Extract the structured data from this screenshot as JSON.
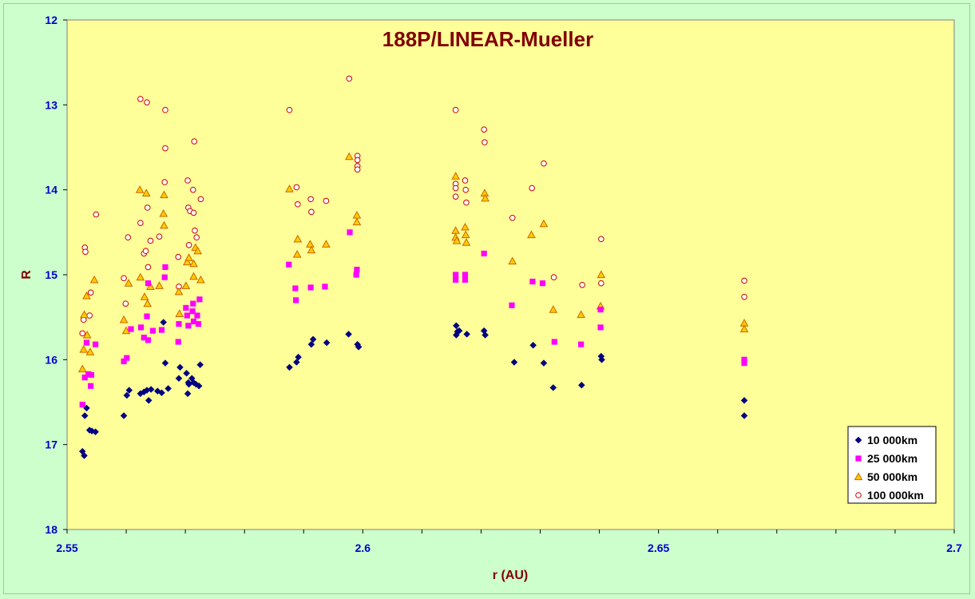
{
  "chart_data": {
    "type": "scatter",
    "title": "188P/LINEAR-Mueller",
    "xlabel": "r (AU)",
    "ylabel": "R",
    "xlim": [
      2.55,
      2.7
    ],
    "ylim": [
      12,
      18
    ],
    "y_inverted": true,
    "x_ticks": [
      "2.55",
      "2.6",
      "2.65",
      "2.7"
    ],
    "x_tick_values": [
      2.55,
      2.6,
      2.65,
      2.7
    ],
    "y_ticks": [
      "12",
      "13",
      "14",
      "15",
      "16",
      "17",
      "18"
    ],
    "y_tick_values": [
      12,
      13,
      14,
      15,
      16,
      17,
      18
    ],
    "x_minor_step": 0.01,
    "grid": false,
    "legend_position": "bottom-right",
    "background": "#ffff99",
    "series": [
      {
        "name": "10 000km",
        "marker": "diamond",
        "color": "#000080",
        "points": [
          [
            2.5526,
            17.08
          ],
          [
            2.5529,
            17.13
          ],
          [
            2.553,
            16.66
          ],
          [
            2.5533,
            16.57
          ],
          [
            2.5538,
            16.83
          ],
          [
            2.5542,
            16.84
          ],
          [
            2.5548,
            16.85
          ],
          [
            2.5596,
            16.66
          ],
          [
            2.5601,
            16.42
          ],
          [
            2.5605,
            16.36
          ],
          [
            2.5624,
            16.4
          ],
          [
            2.563,
            16.38
          ],
          [
            2.5635,
            16.36
          ],
          [
            2.5638,
            16.48
          ],
          [
            2.5642,
            16.35
          ],
          [
            2.5653,
            16.37
          ],
          [
            2.566,
            16.39
          ],
          [
            2.5663,
            15.56
          ],
          [
            2.5666,
            16.04
          ],
          [
            2.5671,
            16.34
          ],
          [
            2.5689,
            16.22
          ],
          [
            2.5691,
            16.09
          ],
          [
            2.5702,
            16.16
          ],
          [
            2.5705,
            16.27
          ],
          [
            2.5706,
            16.29
          ],
          [
            2.5704,
            16.4
          ],
          [
            2.5711,
            16.22
          ],
          [
            2.5714,
            16.27
          ],
          [
            2.5718,
            16.29
          ],
          [
            2.5723,
            16.31
          ],
          [
            2.5725,
            16.06
          ],
          [
            2.5876,
            16.09
          ],
          [
            2.5888,
            16.03
          ],
          [
            2.5891,
            15.97
          ],
          [
            2.5913,
            15.82
          ],
          [
            2.5916,
            15.76
          ],
          [
            2.5939,
            15.8
          ],
          [
            2.5976,
            15.7
          ],
          [
            2.5991,
            15.82
          ],
          [
            2.5993,
            15.85
          ],
          [
            2.6158,
            15.71
          ],
          [
            2.616,
            15.67
          ],
          [
            2.6158,
            15.6
          ],
          [
            2.6163,
            15.66
          ],
          [
            2.6176,
            15.7
          ],
          [
            2.6205,
            15.66
          ],
          [
            2.6207,
            15.71
          ],
          [
            2.6256,
            16.03
          ],
          [
            2.6288,
            15.83
          ],
          [
            2.6306,
            16.04
          ],
          [
            2.6322,
            16.33
          ],
          [
            2.637,
            16.3
          ],
          [
            2.6403,
            15.96
          ],
          [
            2.6404,
            16.0
          ],
          [
            2.6645,
            16.48
          ],
          [
            2.6645,
            16.66
          ]
        ]
      },
      {
        "name": "25 000km",
        "marker": "square",
        "color": "#ff00ff",
        "points": [
          [
            2.5526,
            16.53
          ],
          [
            2.553,
            16.21
          ],
          [
            2.5533,
            15.8
          ],
          [
            2.5536,
            16.17
          ],
          [
            2.554,
            16.31
          ],
          [
            2.5541,
            16.18
          ],
          [
            2.5548,
            15.82
          ],
          [
            2.5596,
            16.02
          ],
          [
            2.5601,
            15.98
          ],
          [
            2.5608,
            15.64
          ],
          [
            2.5625,
            15.62
          ],
          [
            2.563,
            15.74
          ],
          [
            2.5637,
            15.77
          ],
          [
            2.5635,
            15.49
          ],
          [
            2.5637,
            15.1
          ],
          [
            2.5645,
            15.66
          ],
          [
            2.566,
            15.65
          ],
          [
            2.5665,
            15.03
          ],
          [
            2.5666,
            14.91
          ],
          [
            2.5688,
            15.79
          ],
          [
            2.5689,
            15.58
          ],
          [
            2.5701,
            15.39
          ],
          [
            2.5703,
            15.48
          ],
          [
            2.5705,
            15.6
          ],
          [
            2.5712,
            15.43
          ],
          [
            2.5714,
            15.55
          ],
          [
            2.5713,
            15.34
          ],
          [
            2.572,
            15.48
          ],
          [
            2.5722,
            15.58
          ],
          [
            2.5724,
            15.29
          ],
          [
            2.5875,
            14.88
          ],
          [
            2.5886,
            15.16
          ],
          [
            2.5887,
            15.3
          ],
          [
            2.5912,
            15.15
          ],
          [
            2.5936,
            15.14
          ],
          [
            2.5978,
            14.5
          ],
          [
            2.5989,
            15.0
          ],
          [
            2.599,
            14.94
          ],
          [
            2.6157,
            15.0
          ],
          [
            2.6157,
            15.06
          ],
          [
            2.6173,
            15.0
          ],
          [
            2.6173,
            15.06
          ],
          [
            2.6205,
            14.75
          ],
          [
            2.6252,
            15.36
          ],
          [
            2.6287,
            15.08
          ],
          [
            2.6304,
            15.1
          ],
          [
            2.6324,
            15.79
          ],
          [
            2.6369,
            15.82
          ],
          [
            2.6402,
            15.41
          ],
          [
            2.6402,
            15.62
          ],
          [
            2.6645,
            16.0
          ],
          [
            2.6645,
            16.04
          ]
        ]
      },
      {
        "name": "50 000km",
        "marker": "triangle",
        "color": "#cc6600",
        "fill": "#ffcc00",
        "points": [
          [
            2.5526,
            16.11
          ],
          [
            2.5528,
            15.88
          ],
          [
            2.5529,
            15.47
          ],
          [
            2.5533,
            15.25
          ],
          [
            2.5534,
            15.71
          ],
          [
            2.5539,
            15.91
          ],
          [
            2.5546,
            15.06
          ],
          [
            2.5596,
            15.53
          ],
          [
            2.56,
            15.66
          ],
          [
            2.5604,
            15.1
          ],
          [
            2.5624,
            15.03
          ],
          [
            2.5623,
            14.0
          ],
          [
            2.5634,
            14.04
          ],
          [
            2.5631,
            15.26
          ],
          [
            2.5636,
            15.34
          ],
          [
            2.5641,
            15.14
          ],
          [
            2.5656,
            15.13
          ],
          [
            2.5663,
            14.28
          ],
          [
            2.5664,
            14.42
          ],
          [
            2.5664,
            14.06
          ],
          [
            2.5689,
            15.2
          ],
          [
            2.569,
            15.46
          ],
          [
            2.5701,
            15.13
          ],
          [
            2.5703,
            14.85
          ],
          [
            2.5706,
            14.8
          ],
          [
            2.5714,
            14.87
          ],
          [
            2.5717,
            14.68
          ],
          [
            2.5714,
            15.02
          ],
          [
            2.5721,
            14.72
          ],
          [
            2.5726,
            15.06
          ],
          [
            2.5876,
            13.99
          ],
          [
            2.5889,
            14.76
          ],
          [
            2.589,
            14.58
          ],
          [
            2.5911,
            14.64
          ],
          [
            2.5913,
            14.71
          ],
          [
            2.5938,
            14.64
          ],
          [
            2.5977,
            13.61
          ],
          [
            2.599,
            14.3
          ],
          [
            2.599,
            14.38
          ],
          [
            2.6157,
            13.84
          ],
          [
            2.6157,
            14.48
          ],
          [
            2.6157,
            14.56
          ],
          [
            2.6159,
            14.6
          ],
          [
            2.6173,
            14.44
          ],
          [
            2.6174,
            14.53
          ],
          [
            2.6175,
            14.62
          ],
          [
            2.6206,
            14.04
          ],
          [
            2.6207,
            14.1
          ],
          [
            2.6253,
            14.84
          ],
          [
            2.6285,
            14.53
          ],
          [
            2.6306,
            14.4
          ],
          [
            2.6322,
            15.41
          ],
          [
            2.6369,
            15.47
          ],
          [
            2.6402,
            15.37
          ],
          [
            2.6403,
            15.0
          ],
          [
            2.6645,
            15.57
          ],
          [
            2.6645,
            15.64
          ]
        ]
      },
      {
        "name": "100 000km",
        "marker": "circle",
        "color": "#cc0000",
        "fill": "#ffffff",
        "points": [
          [
            2.5526,
            15.69
          ],
          [
            2.5528,
            15.53
          ],
          [
            2.553,
            14.68
          ],
          [
            2.5531,
            14.73
          ],
          [
            2.5538,
            15.48
          ],
          [
            2.554,
            15.21
          ],
          [
            2.5549,
            14.29
          ],
          [
            2.5596,
            15.04
          ],
          [
            2.5599,
            15.34
          ],
          [
            2.5603,
            14.56
          ],
          [
            2.5624,
            12.93
          ],
          [
            2.5624,
            14.39
          ],
          [
            2.563,
            14.75
          ],
          [
            2.5633,
            14.72
          ],
          [
            2.5635,
            12.97
          ],
          [
            2.5636,
            14.21
          ],
          [
            2.5637,
            14.91
          ],
          [
            2.5641,
            14.6
          ],
          [
            2.5656,
            14.55
          ],
          [
            2.5666,
            13.06
          ],
          [
            2.5666,
            13.51
          ],
          [
            2.5665,
            13.91
          ],
          [
            2.5688,
            14.79
          ],
          [
            2.5689,
            15.14
          ],
          [
            2.5704,
            13.89
          ],
          [
            2.5705,
            14.21
          ],
          [
            2.5708,
            14.25
          ],
          [
            2.5706,
            14.65
          ],
          [
            2.5713,
            14.0
          ],
          [
            2.5714,
            14.27
          ],
          [
            2.5715,
            13.43
          ],
          [
            2.5716,
            14.48
          ],
          [
            2.5719,
            14.56
          ],
          [
            2.5726,
            14.11
          ],
          [
            2.5876,
            13.06
          ],
          [
            2.5888,
            13.97
          ],
          [
            2.589,
            14.17
          ],
          [
            2.5912,
            14.11
          ],
          [
            2.5913,
            14.26
          ],
          [
            2.5938,
            14.13
          ],
          [
            2.5977,
            12.69
          ],
          [
            2.5991,
            13.6
          ],
          [
            2.5991,
            13.65
          ],
          [
            2.5991,
            13.72
          ],
          [
            2.5991,
            13.76
          ],
          [
            2.6157,
            13.06
          ],
          [
            2.6157,
            13.93
          ],
          [
            2.6157,
            13.98
          ],
          [
            2.6157,
            14.08
          ],
          [
            2.6173,
            13.89
          ],
          [
            2.6174,
            14.0
          ],
          [
            2.6175,
            14.15
          ],
          [
            2.6205,
            13.29
          ],
          [
            2.6206,
            13.44
          ],
          [
            2.6253,
            14.33
          ],
          [
            2.6286,
            13.98
          ],
          [
            2.6306,
            13.69
          ],
          [
            2.6323,
            15.03
          ],
          [
            2.6371,
            15.12
          ],
          [
            2.6403,
            14.58
          ],
          [
            2.6403,
            15.1
          ],
          [
            2.6645,
            15.07
          ],
          [
            2.6645,
            15.26
          ]
        ]
      }
    ]
  }
}
